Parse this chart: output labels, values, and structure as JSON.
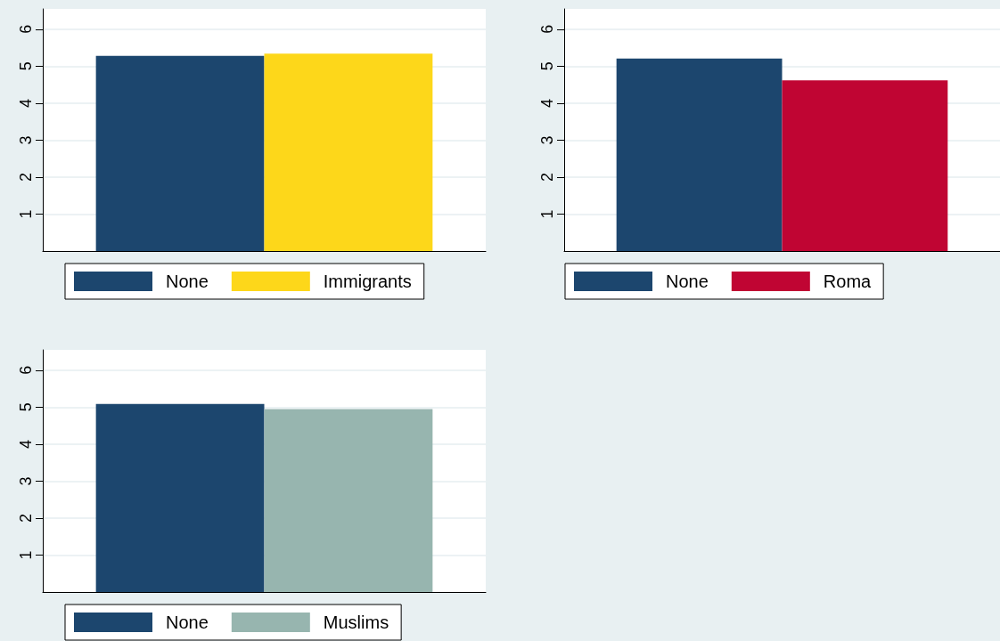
{
  "chart_data": [
    {
      "type": "bar",
      "categories": [
        null
      ],
      "series": [
        {
          "name": "None",
          "color": "#1c466e",
          "values": [
            5.28
          ]
        },
        {
          "name": "Immigrants",
          "color": "#fdd71a",
          "values": [
            5.34
          ]
        }
      ],
      "ylim": [
        0,
        6.55
      ],
      "yticks": [
        1,
        2,
        3,
        4,
        5,
        6
      ],
      "grid": "y",
      "legend": "bottom"
    },
    {
      "type": "bar",
      "categories": [
        null
      ],
      "series": [
        {
          "name": "None",
          "color": "#1c466e",
          "values": [
            5.21
          ]
        },
        {
          "name": "Roma",
          "color": "#c00533",
          "values": [
            4.62
          ]
        }
      ],
      "ylim": [
        0,
        6.55
      ],
      "yticks": [
        1,
        2,
        3,
        4,
        5,
        6
      ],
      "grid": "y",
      "legend": "bottom"
    },
    {
      "type": "bar",
      "categories": [
        null
      ],
      "series": [
        {
          "name": "None",
          "color": "#1c466e",
          "values": [
            5.09
          ]
        },
        {
          "name": "Muslims",
          "color": "#97b5af",
          "values": [
            4.95
          ]
        }
      ],
      "ylim": [
        0,
        6.55
      ],
      "yticks": [
        1,
        2,
        3,
        4,
        5,
        6
      ],
      "grid": "y",
      "legend": "bottom"
    }
  ]
}
